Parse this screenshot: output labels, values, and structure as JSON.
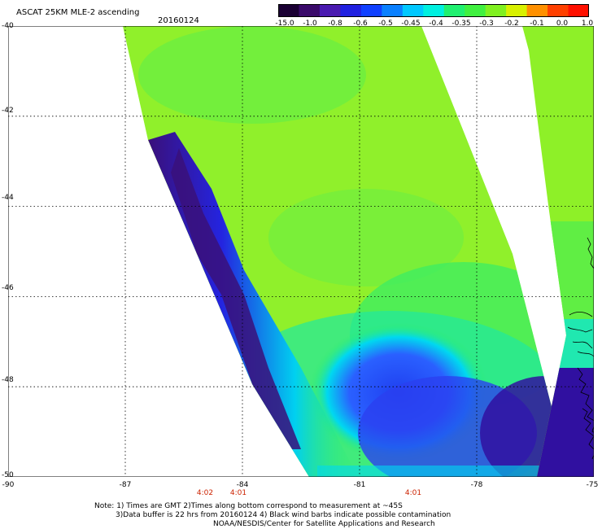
{
  "header": {
    "title": "ASCAT 25KM MLE-2 ascending",
    "date": "20160124"
  },
  "colorbar": {
    "labels": [
      "-15.0",
      "-1.0",
      "-0.8",
      "-0.6",
      "-0.5",
      "-0.45",
      "-0.4",
      "-0.35",
      "-0.3",
      "-0.2",
      "-0.1",
      "0.0",
      "1.0"
    ],
    "colors": [
      "#1a0033",
      "#3a0a6a",
      "#4a1ab0",
      "#2020e0",
      "#1040ff",
      "#0a80ff",
      "#00c8ff",
      "#00f0e0",
      "#20f070",
      "#40f040",
      "#80f020",
      "#d8f000",
      "#ff9000",
      "#ff4000",
      "#ff1000"
    ]
  },
  "axes": {
    "lat_labels": [
      "-40",
      "-42",
      "-44",
      "-46",
      "-48",
      "-50"
    ],
    "lon_labels": [
      "-90",
      "-87",
      "-84",
      "-81",
      "-78",
      "-75"
    ],
    "lat_range": [
      -50,
      -40
    ],
    "lon_range": [
      -90,
      -75
    ]
  },
  "times": [
    "4:02",
    "4:01",
    "4:01"
  ],
  "notes": {
    "line1": "Note: 1) Times are GMT 2)Times along bottom correspond to measurement at ~45S",
    "line2": "3)Data buffer is 22 hrs from 20160124 4) Black wind barbs indicate possible contamination",
    "line3": "NOAA/NESDIS/Center for Satellite Applications and Research"
  },
  "palette": {
    "dark_purple": "#4a1a80",
    "deep_blue": "#2030e8",
    "cyan": "#00e8e8",
    "light_green": "#40f040",
    "lime": "#90f020"
  }
}
